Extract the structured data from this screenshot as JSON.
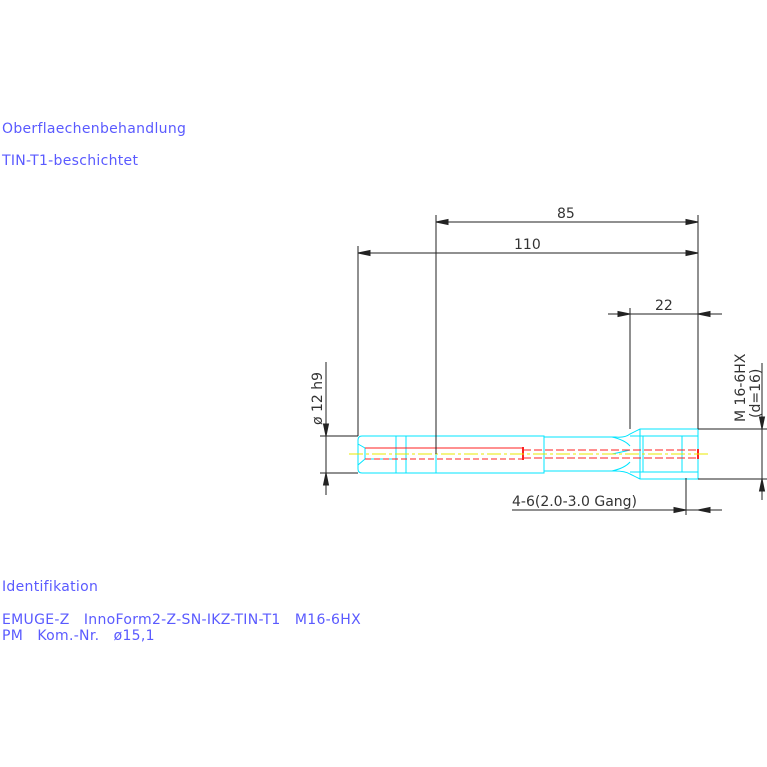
{
  "notes": {
    "surface_heading": "Oberflaechenbehandlung",
    "surface_value": "TIN-T1-beschichtet",
    "ident_heading": "Identifikation",
    "ident_line1": "EMUGE-Z   InnoForm2-Z-SN-IKZ-TIN-T1   M16-6HX",
    "ident_line2": "PM   Kom.-Nr.   ø15,1"
  },
  "dimensions": {
    "length_85": "85",
    "length_110": "110",
    "length_22": "22",
    "shank_diameter": "ø 12 h9",
    "thread": "M 16-6HX",
    "thread_d": "(d=16)",
    "chamfer": "4-6(2.0-3.0 Gang)"
  },
  "colors": {
    "text": "#5a5aff",
    "outline": "#00e5ff",
    "bore": "#ff2020",
    "centerline": "#e8e800",
    "dimension": "#222222"
  }
}
